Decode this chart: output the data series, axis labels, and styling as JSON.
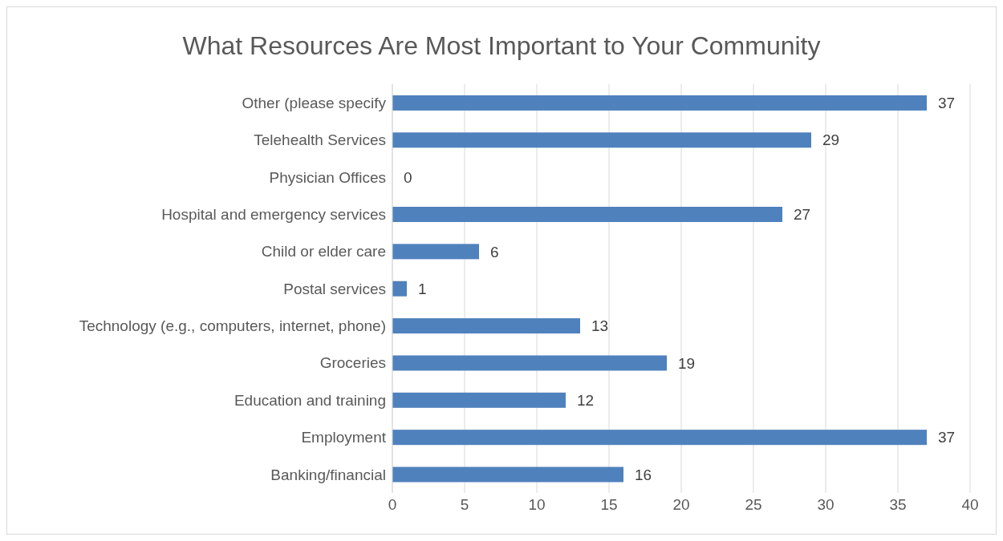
{
  "chart_data": {
    "type": "bar",
    "orientation": "horizontal",
    "title": "What Resources Are Most Important to Your Community",
    "categories": [
      "Other (please specify",
      "Telehealth Services",
      "Physician Offices",
      "Hospital and emergency services",
      "Child or elder care",
      "Postal services",
      "Technology (e.g., computers, internet, phone)",
      "Groceries",
      "Education and training",
      "Employment",
      "Banking/financial"
    ],
    "values": [
      37,
      29,
      0,
      27,
      6,
      1,
      13,
      19,
      12,
      37,
      16
    ],
    "color": "#4f81bd",
    "xlim": [
      0,
      40
    ],
    "xticks": [
      0,
      5,
      10,
      15,
      20,
      25,
      30,
      35,
      40
    ],
    "grid": "x",
    "data_labels": true
  }
}
